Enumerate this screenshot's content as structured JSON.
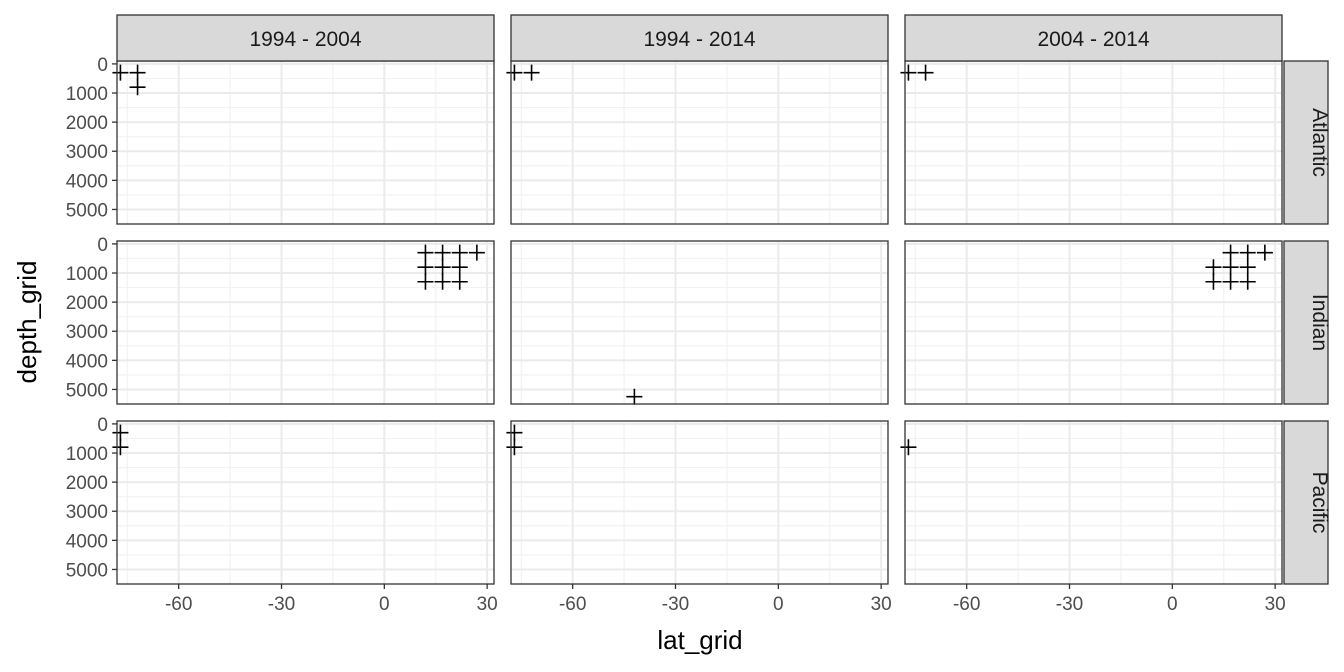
{
  "chart_data": {
    "type": "scatter",
    "marker": "plus",
    "xlabel": "lat_grid",
    "ylabel": "depth_grid",
    "xlim": [
      -78,
      32
    ],
    "xticks": [
      -60,
      -30,
      0,
      30
    ],
    "xtick_labels": [
      "-60",
      "-30",
      "0",
      "30"
    ],
    "ylim": [
      5500,
      -100
    ],
    "yticks": [
      0,
      1000,
      2000,
      3000,
      4000,
      5000
    ],
    "ytick_labels": [
      "0",
      "1000",
      "2000",
      "3000",
      "4000",
      "5000"
    ],
    "y_reversed": true,
    "grid": true,
    "columns": [
      "1994 - 2004",
      "1994 - 2014",
      "2004 - 2014"
    ],
    "rows": [
      "Atlantic",
      "Indian",
      "Pacific"
    ],
    "panels": [
      {
        "column": "1994 - 2004",
        "row": "Atlantic",
        "points": [
          [
            -77,
            300
          ],
          [
            -72,
            300
          ],
          [
            -72,
            800
          ]
        ]
      },
      {
        "column": "1994 - 2014",
        "row": "Atlantic",
        "points": [
          [
            -77,
            300
          ],
          [
            -72,
            300
          ]
        ]
      },
      {
        "column": "2004 - 2014",
        "row": "Atlantic",
        "points": [
          [
            -77,
            300
          ],
          [
            -72,
            300
          ]
        ]
      },
      {
        "column": "1994 - 2004",
        "row": "Indian",
        "points": [
          [
            12,
            300
          ],
          [
            17,
            300
          ],
          [
            22,
            300
          ],
          [
            27,
            300
          ],
          [
            12,
            800
          ],
          [
            17,
            800
          ],
          [
            22,
            800
          ],
          [
            12,
            1300
          ],
          [
            17,
            1300
          ],
          [
            22,
            1300
          ]
        ]
      },
      {
        "column": "1994 - 2014",
        "row": "Indian",
        "points": [
          [
            -42,
            5250
          ]
        ]
      },
      {
        "column": "2004 - 2014",
        "row": "Indian",
        "points": [
          [
            17,
            300
          ],
          [
            22,
            300
          ],
          [
            27,
            300
          ],
          [
            12,
            800
          ],
          [
            17,
            800
          ],
          [
            22,
            800
          ],
          [
            12,
            1300
          ],
          [
            17,
            1300
          ],
          [
            22,
            1300
          ]
        ]
      },
      {
        "column": "1994 - 2004",
        "row": "Pacific",
        "points": [
          [
            -77,
            300
          ],
          [
            -77,
            800
          ]
        ]
      },
      {
        "column": "1994 - 2014",
        "row": "Pacific",
        "points": [
          [
            -77,
            300
          ],
          [
            -77,
            800
          ]
        ]
      },
      {
        "column": "2004 - 2014",
        "row": "Pacific",
        "points": [
          [
            -77,
            800
          ]
        ]
      }
    ]
  }
}
